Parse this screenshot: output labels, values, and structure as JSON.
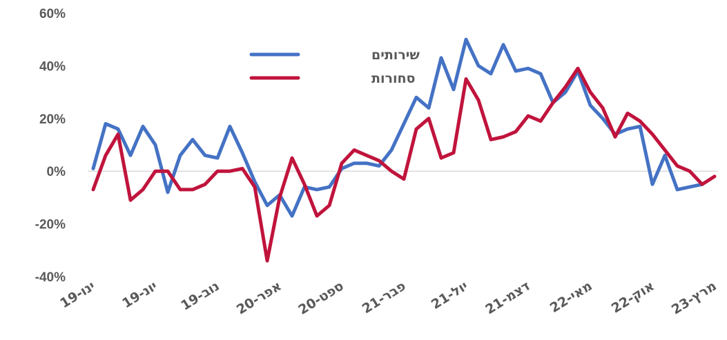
{
  "chart_data": {
    "type": "line",
    "title": "",
    "xlabel": "",
    "ylabel": "",
    "ylim": [
      -40,
      60
    ],
    "yticks": [
      "60%",
      "40%",
      "20%",
      "0%",
      "-20%",
      "-40%"
    ],
    "ytick_values": [
      60,
      40,
      20,
      0,
      -20,
      -40
    ],
    "categories": [
      "ינו-19",
      "פבר-19",
      "מרץ-19",
      "אפר-19",
      "מאי-19",
      "יונ-19",
      "יול-19",
      "אוג-19",
      "ספט-19",
      "אוק-19",
      "נוב-19",
      "דצמ-19",
      "ינו-20",
      "פבר-20",
      "מרץ-20",
      "אפר-20",
      "מאי-20",
      "יונ-20",
      "יול-20",
      "אוג-20",
      "ספט-20",
      "אוק-20",
      "נוב-20",
      "דצמ-20",
      "ינו-21",
      "פבר-21",
      "מרץ-21",
      "אפר-21",
      "מאי-21",
      "יונ-21",
      "יול-21",
      "אוג-21",
      "ספט-21",
      "אוק-21",
      "נוב-21",
      "דצמ-21",
      "ינו-22",
      "פבר-22",
      "מרץ-22",
      "אפר-22",
      "מאי-22",
      "יונ-22",
      "יול-22",
      "אוג-22",
      "ספט-22",
      "אוק-22",
      "נוב-22",
      "דצמ-22",
      "ינו-23",
      "פבר-23",
      "מרץ-23"
    ],
    "x_tick_labels": [
      {
        "index": 0,
        "label": "ינו-19"
      },
      {
        "index": 5,
        "label": "יונ-19"
      },
      {
        "index": 10,
        "label": "נוב-19"
      },
      {
        "index": 15,
        "label": "אפר-20"
      },
      {
        "index": 20,
        "label": "ספט-20"
      },
      {
        "index": 25,
        "label": "פבר-21"
      },
      {
        "index": 30,
        "label": "יול-21"
      },
      {
        "index": 35,
        "label": "דצמ-21"
      },
      {
        "index": 40,
        "label": "מאי-22"
      },
      {
        "index": 45,
        "label": "אוק-22"
      },
      {
        "index": 50,
        "label": "מרץ-23"
      }
    ],
    "series": [
      {
        "name": "שירותים",
        "color": "#4472c4",
        "values": [
          1,
          18,
          16,
          6,
          17,
          10,
          -8,
          6,
          12,
          6,
          5,
          17,
          7,
          -4,
          -13,
          -9,
          -17,
          -6,
          -7,
          -6,
          1,
          3,
          3,
          2,
          8,
          18,
          28,
          24,
          43,
          31,
          50,
          40,
          37,
          48,
          38,
          39,
          37,
          26,
          30,
          38,
          25,
          20,
          14,
          16,
          17,
          -5,
          6,
          -7,
          -6,
          -5,
          null
        ]
      },
      {
        "name": "סחורות",
        "color": "#c0143c",
        "values": [
          -7,
          6,
          14,
          -11,
          -7,
          0,
          0,
          -7,
          -7,
          -5,
          0,
          0,
          1,
          -6,
          -34,
          -10,
          5,
          -5,
          -17,
          -13,
          3,
          8,
          6,
          4,
          0,
          -3,
          16,
          20,
          5,
          7,
          35,
          27,
          12,
          13,
          15,
          21,
          19,
          26,
          32,
          39,
          30,
          24,
          13,
          22,
          19,
          14,
          8,
          2,
          0,
          -5,
          -2
        ]
      }
    ],
    "grid": false,
    "zero_line": true,
    "legend_position": "top-center"
  }
}
